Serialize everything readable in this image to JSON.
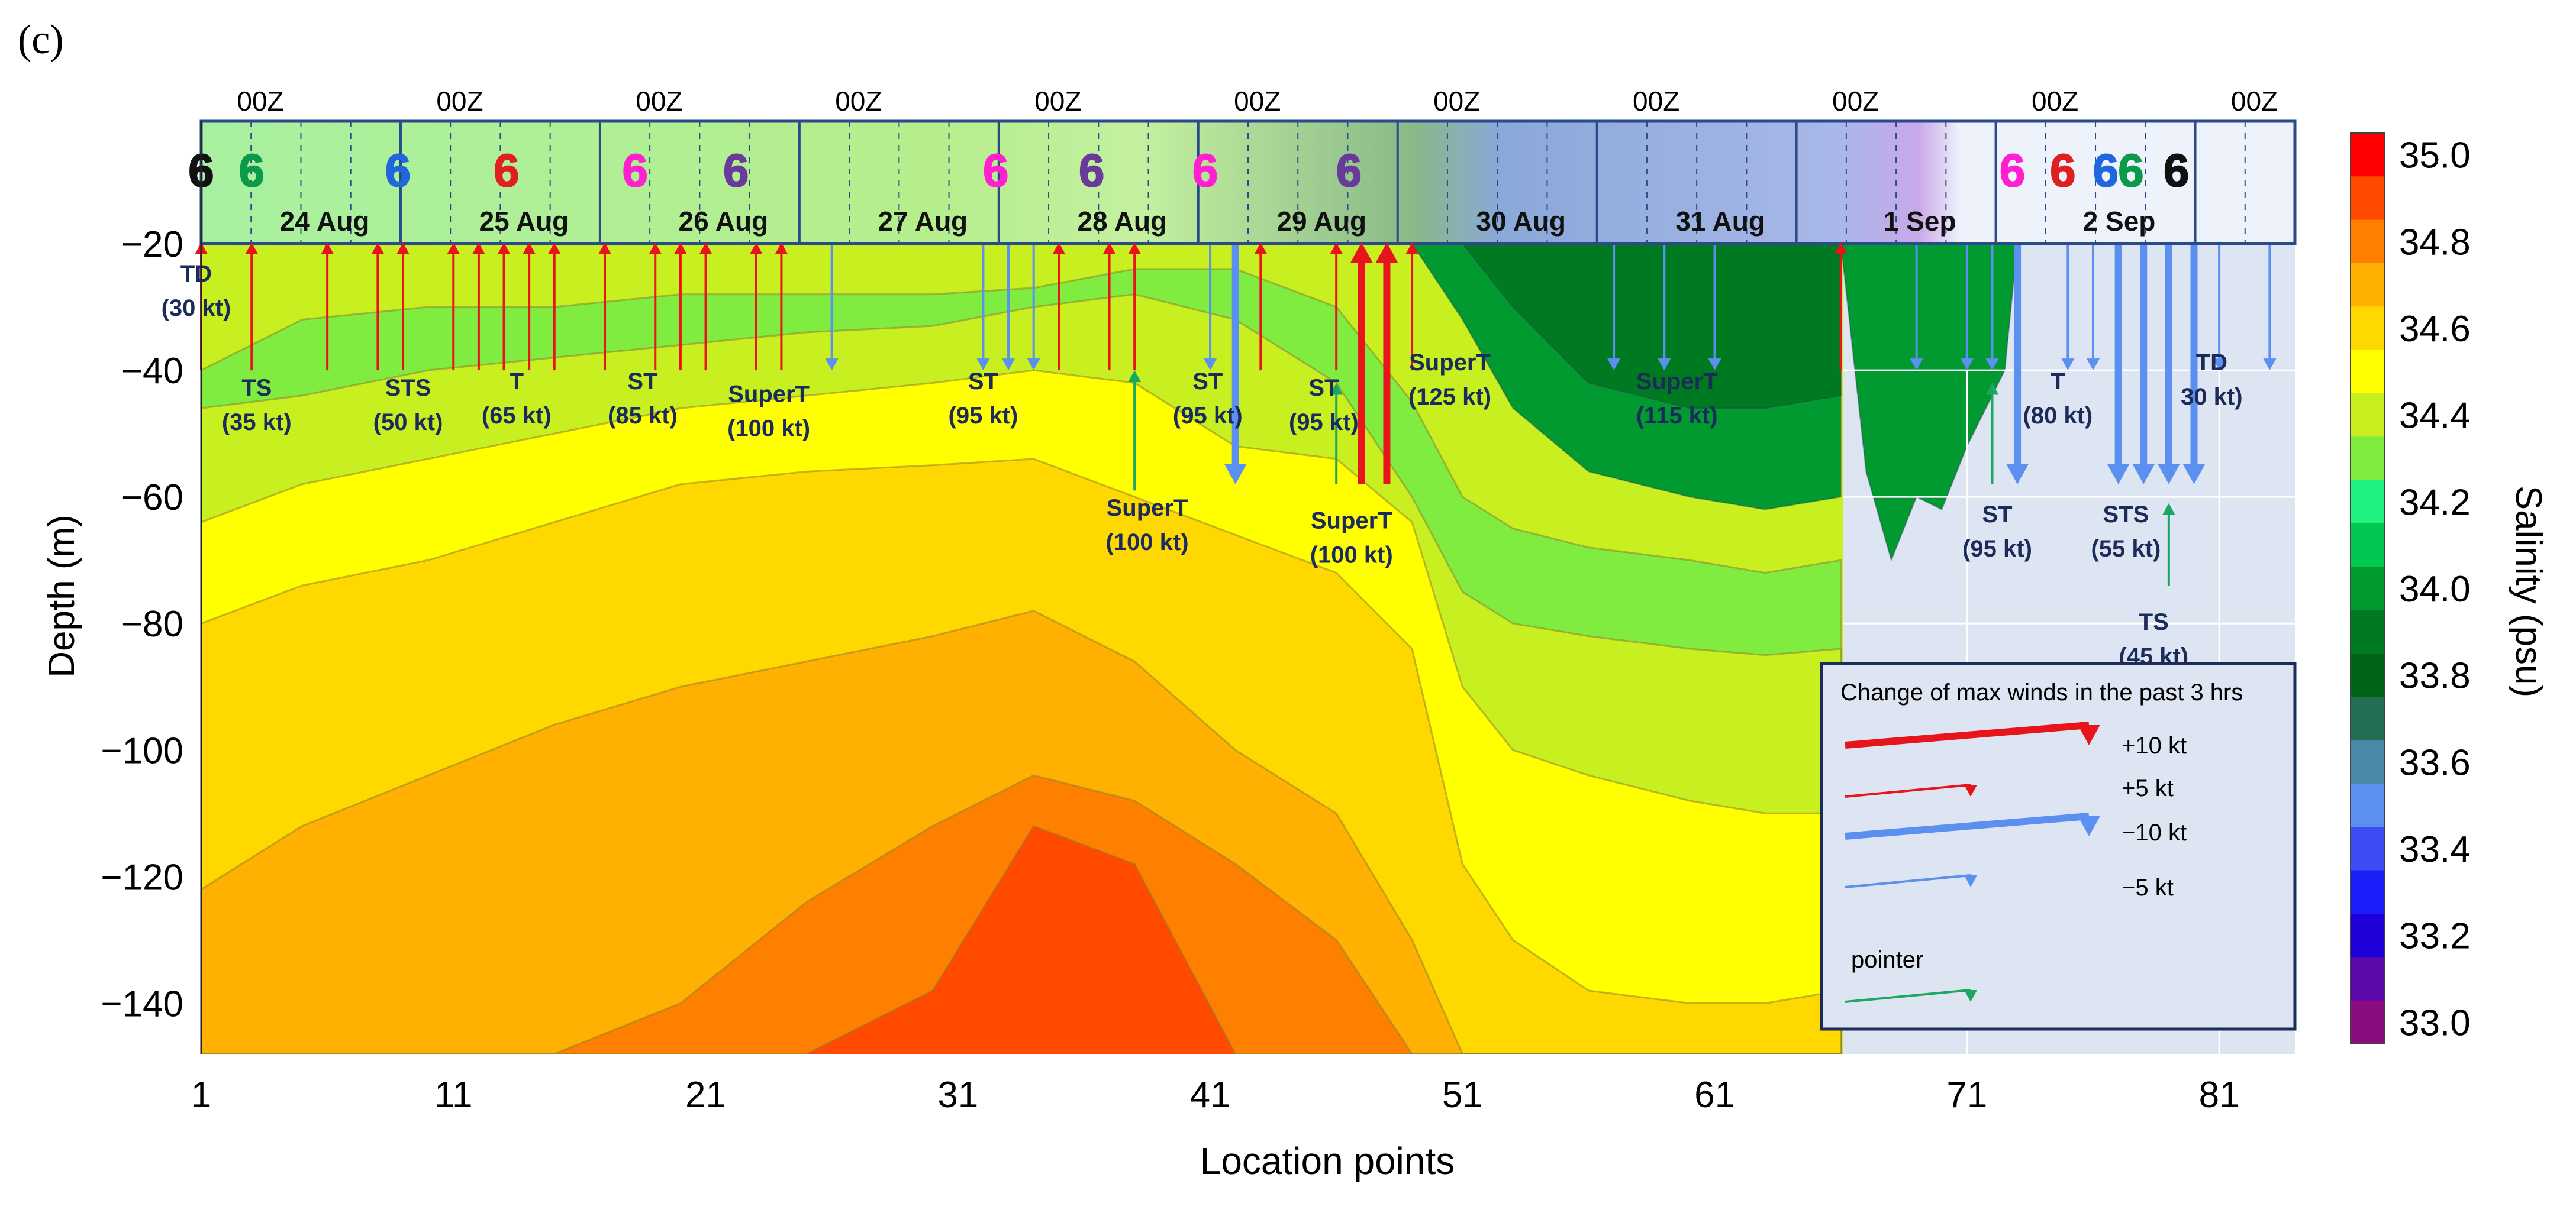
{
  "chart_data": {
    "type": "heatmap",
    "panel_label": "(c)",
    "xlabel": "Location points",
    "ylabel": "Depth (m)",
    "colorbar_label": "Salinity (psu)",
    "xlim": [
      1,
      84
    ],
    "ylim": [
      -148,
      0
    ],
    "x_ticks": [
      1,
      11,
      21,
      31,
      41,
      51,
      61,
      71,
      81
    ],
    "y_ticks": [
      -20,
      -40,
      -60,
      -80,
      -100,
      -120,
      -140
    ],
    "colorbar": {
      "range": [
        32.95,
        35.05
      ],
      "tick_labels": [
        "35.0",
        "34.8",
        "34.6",
        "34.4",
        "34.2",
        "34.0",
        "33.8",
        "33.6",
        "33.4",
        "33.2",
        "33.0"
      ],
      "tick_values": [
        35.0,
        34.8,
        34.6,
        34.4,
        34.2,
        34.0,
        33.8,
        33.6,
        33.4,
        33.2,
        33.0
      ],
      "levels": [
        {
          "min": 34.95,
          "color": "#ff0000"
        },
        {
          "min": 34.85,
          "color": "#ff4a00"
        },
        {
          "min": 34.75,
          "color": "#ff8000"
        },
        {
          "min": 34.65,
          "color": "#ffb000"
        },
        {
          "min": 34.55,
          "color": "#ffd800"
        },
        {
          "min": 34.45,
          "color": "#ffff00"
        },
        {
          "min": 34.35,
          "color": "#c8f020"
        },
        {
          "min": 34.25,
          "color": "#80ec40"
        },
        {
          "min": 34.15,
          "color": "#20f080"
        },
        {
          "min": 34.05,
          "color": "#00c850"
        },
        {
          "min": 33.95,
          "color": "#009a30"
        },
        {
          "min": 33.85,
          "color": "#007a20"
        },
        {
          "min": 33.75,
          "color": "#006418"
        },
        {
          "min": 33.65,
          "color": "#226e52"
        },
        {
          "min": 33.55,
          "color": "#4a8aa8"
        },
        {
          "min": 33.45,
          "color": "#5b8ff0"
        },
        {
          "min": 33.35,
          "color": "#3e4cf6"
        },
        {
          "min": 33.25,
          "color": "#1a1ef8"
        },
        {
          "min": 33.15,
          "color": "#1e00d8"
        },
        {
          "min": 33.05,
          "color": "#5a0aa8"
        },
        {
          "min": 32.95,
          "color": "#8a0a80"
        }
      ]
    },
    "salinity_surfaces": {
      "x": [
        1,
        5,
        10,
        15,
        20,
        25,
        30,
        34,
        38,
        42,
        46,
        49,
        51,
        53,
        56,
        60,
        63,
        66
      ],
      "note": "depth (m) at which each salinity level is crossed along the track",
      "isolines": [
        {
          "level": 34.3,
          "depth": [
            -40,
            -32,
            -30,
            -30,
            -28,
            -28,
            -28,
            -27,
            -24,
            -24,
            -30,
            -45,
            -60,
            -65,
            -68,
            -70,
            -72,
            -70
          ]
        },
        {
          "level": 34.4,
          "depth": [
            -46,
            -44,
            -40,
            -38,
            -36,
            -34,
            -33,
            -30,
            -28,
            -32,
            -42,
            -60,
            -75,
            -80,
            -82,
            -84,
            -85,
            -84
          ]
        },
        {
          "level": 34.5,
          "depth": [
            -64,
            -58,
            -54,
            -50,
            -46,
            -44,
            -42,
            -40,
            -42,
            -52,
            -54,
            -64,
            -90,
            -100,
            -104,
            -108,
            -110,
            -110
          ]
        },
        {
          "level": 34.6,
          "depth": [
            -80,
            -74,
            -70,
            -64,
            -58,
            -56,
            -55,
            -54,
            -60,
            -66,
            -72,
            -84,
            -118,
            -130,
            -138,
            -140,
            -140,
            -138
          ]
        },
        {
          "level": 34.7,
          "depth": [
            -122,
            -112,
            -104,
            -96,
            -90,
            -86,
            -82,
            -78,
            -86,
            -100,
            -110,
            -130,
            -148,
            -148,
            -148,
            -148,
            -148,
            -148
          ]
        },
        {
          "level": 34.8,
          "depth": [
            -148,
            -148,
            -148,
            -148,
            -140,
            -124,
            -112,
            -104,
            -108,
            -118,
            -130,
            -148,
            -148,
            -148,
            -148,
            -148,
            -148,
            -148
          ]
        },
        {
          "level": 34.9,
          "depth": [
            -148,
            -148,
            -148,
            -148,
            -148,
            -148,
            -138,
            -112,
            -118,
            -148,
            -148,
            -148,
            -148,
            -148,
            -148,
            -148,
            -148,
            -148
          ]
        }
      ]
    },
    "series": [
      {
        "name": "Change of max winds +10 kt",
        "values": [
          47,
          48
        ]
      },
      {
        "name": "Change of max winds +5 kt",
        "values": [
          1,
          3,
          6,
          8,
          9,
          11,
          12,
          13,
          14,
          15,
          17,
          19,
          20,
          21,
          23,
          24,
          35,
          37,
          38,
          43,
          46,
          47,
          49,
          66
        ]
      },
      {
        "name": "Change of max winds −10 kt",
        "values": [
          42,
          73,
          77,
          78,
          79,
          80
        ]
      },
      {
        "name": "Change of max winds −5 kt",
        "values": [
          26,
          32,
          33,
          34,
          41,
          57,
          59,
          61,
          69,
          71,
          72,
          75,
          76,
          81,
          83
        ]
      }
    ],
    "arrows": [
      {
        "x": 1,
        "kind": "+5",
        "to": -40
      },
      {
        "x": 3,
        "kind": "+5",
        "to": -40
      },
      {
        "x": 6,
        "kind": "+5",
        "to": -40
      },
      {
        "x": 8,
        "kind": "+5",
        "to": -40
      },
      {
        "x": 9,
        "kind": "+5",
        "to": -40
      },
      {
        "x": 11,
        "kind": "+5",
        "to": -40
      },
      {
        "x": 12,
        "kind": "+5",
        "to": -40
      },
      {
        "x": 13,
        "kind": "+5",
        "to": -40
      },
      {
        "x": 14,
        "kind": "+5",
        "to": -40
      },
      {
        "x": 15,
        "kind": "+5",
        "to": -40
      },
      {
        "x": 17,
        "kind": "+5",
        "to": -40
      },
      {
        "x": 19,
        "kind": "+5",
        "to": -40
      },
      {
        "x": 20,
        "kind": "+5",
        "to": -40
      },
      {
        "x": 21,
        "kind": "+5",
        "to": -40
      },
      {
        "x": 23,
        "kind": "+5",
        "to": -40
      },
      {
        "x": 24,
        "kind": "+5",
        "to": -40
      },
      {
        "x": 26,
        "kind": "-5",
        "to": -40
      },
      {
        "x": 32,
        "kind": "-5",
        "to": -40
      },
      {
        "x": 33,
        "kind": "-5",
        "to": -40
      },
      {
        "x": 34,
        "kind": "-5",
        "to": -40
      },
      {
        "x": 35,
        "kind": "+5",
        "to": -40
      },
      {
        "x": 37,
        "kind": "+5",
        "to": -40
      },
      {
        "x": 38,
        "kind": "+5",
        "to": -40
      },
      {
        "x": 38,
        "kind": "pointer",
        "from": -59,
        "to": -40
      },
      {
        "x": 41,
        "kind": "-5",
        "to": -40
      },
      {
        "x": 42,
        "kind": "-10",
        "to": -58
      },
      {
        "x": 43,
        "kind": "+5",
        "to": -40
      },
      {
        "x": 46,
        "kind": "+5",
        "to": -40
      },
      {
        "x": 46,
        "kind": "pointer",
        "from": -58,
        "to": -42
      },
      {
        "x": 47,
        "kind": "+5",
        "to": -40
      },
      {
        "x": 47,
        "kind": "+10",
        "to": -58
      },
      {
        "x": 48,
        "kind": "+10",
        "to": -58
      },
      {
        "x": 49,
        "kind": "+5",
        "to": -40
      },
      {
        "x": 57,
        "kind": "-5",
        "to": -40
      },
      {
        "x": 59,
        "kind": "-5",
        "to": -40
      },
      {
        "x": 61,
        "kind": "-5",
        "to": -40
      },
      {
        "x": 66,
        "kind": "+5",
        "to": -40
      },
      {
        "x": 69,
        "kind": "-5",
        "to": -40
      },
      {
        "x": 71,
        "kind": "-5",
        "to": -40
      },
      {
        "x": 72,
        "kind": "-5",
        "to": -40
      },
      {
        "x": 72,
        "kind": "pointer",
        "from": -58,
        "to": -42
      },
      {
        "x": 73,
        "kind": "-10",
        "to": -58
      },
      {
        "x": 75,
        "kind": "-5",
        "to": -40
      },
      {
        "x": 76,
        "kind": "-5",
        "to": -40
      },
      {
        "x": 77,
        "kind": "-10",
        "to": -58
      },
      {
        "x": 78,
        "kind": "-10",
        "to": -58
      },
      {
        "x": 79,
        "kind": "-10",
        "to": -58
      },
      {
        "x": 79,
        "kind": "pointer",
        "from": -74,
        "to": -61
      },
      {
        "x": 80,
        "kind": "-10",
        "to": -58
      },
      {
        "x": 81,
        "kind": "-5",
        "to": -40
      },
      {
        "x": 83,
        "kind": "-5",
        "to": -40
      }
    ],
    "annotations": [
      {
        "text": "TD",
        "text2": "(30 kt)",
        "x": 0.8,
        "y": -26
      },
      {
        "text": "TS",
        "text2": "(35 kt)",
        "x": 3.2,
        "y": -44
      },
      {
        "text": "STS",
        "text2": "(50 kt)",
        "x": 9.2,
        "y": -44
      },
      {
        "text": "T",
        "text2": "(65 kt)",
        "x": 13.5,
        "y": -43
      },
      {
        "text": "ST",
        "text2": "(85 kt)",
        "x": 18.5,
        "y": -43
      },
      {
        "text": "SuperT",
        "text2": "(100 kt)",
        "x": 23.5,
        "y": -45
      },
      {
        "text": "ST",
        "text2": "(95 kt)",
        "x": 32,
        "y": -43
      },
      {
        "text": "SuperT",
        "text2": "(100 kt)",
        "x": 38.5,
        "y": -63
      },
      {
        "text": "ST",
        "text2": "(95 kt)",
        "x": 40.9,
        "y": -43
      },
      {
        "text": "ST",
        "text2": "(95 kt)",
        "x": 45.5,
        "y": -44
      },
      {
        "text": "SuperT",
        "text2": "(100 kt)",
        "x": 46.6,
        "y": -65
      },
      {
        "text": "SuperT",
        "text2": "(125 kt)",
        "x": 50.5,
        "y": -40
      },
      {
        "text": "SuperT",
        "text2": "(115 kt)",
        "x": 59.5,
        "y": -43
      },
      {
        "text": "ST",
        "text2": "(95 kt)",
        "x": 72.2,
        "y": -64
      },
      {
        "text": "T",
        "text2": "(80 kt)",
        "x": 74.6,
        "y": -43
      },
      {
        "text": "STS",
        "text2": "(55 kt)",
        "x": 77.3,
        "y": -64
      },
      {
        "text": "TS",
        "text2": "(45 kt)",
        "x": 78.4,
        "y": -81
      },
      {
        "text": "TD",
        "text2": "30 kt)",
        "x": 80.7,
        "y": -40
      }
    ],
    "days": [
      {
        "label": "24 Aug",
        "x_start": 1,
        "x_end": 18
      },
      {
        "label": "25 Aug",
        "x_start": 18,
        "x_end": 39
      },
      {
        "label": "26 Aug",
        "x_start": 39,
        "x_end": 60
      },
      {
        "label": "27 Aug",
        "x_start": 60,
        "x_end": 81
      },
      {
        "label": "28 Aug",
        "x_start": 81,
        "x_end": 102
      },
      {
        "label": "29 Aug",
        "x_start": 102,
        "x_end": 123
      },
      {
        "label": "30 Aug",
        "x_start": 123,
        "x_end": 144
      },
      {
        "label": "31 Aug",
        "x_start": 144,
        "x_end": 165
      },
      {
        "label": "1 Sep",
        "x_start": 165,
        "x_end": 186
      },
      {
        "label": "2 Sep",
        "x_start": 186,
        "x_end": 210
      }
    ],
    "hour_label": "00Z",
    "storm_symbols": [
      {
        "glyph": "6",
        "color": "#111111",
        "x": 1.0
      },
      {
        "glyph": "6",
        "color": "#0a9a4a",
        "x": 3.0
      },
      {
        "glyph": "6",
        "color": "#2266dd",
        "x": 8.8
      },
      {
        "glyph": "6",
        "color": "#e02020",
        "x": 13.1
      },
      {
        "glyph": "6",
        "color": "#ff20d0",
        "x": 18.2
      },
      {
        "glyph": "6",
        "color": "#6a3a9a",
        "x": 22.2
      },
      {
        "glyph": "6",
        "color": "#ff20d0",
        "x": 32.5
      },
      {
        "glyph": "6",
        "color": "#6a3a9a",
        "x": 36.3
      },
      {
        "glyph": "6",
        "color": "#ff20d0",
        "x": 40.8
      },
      {
        "glyph": "6",
        "color": "#6a3a9a",
        "x": 46.5
      },
      {
        "glyph": "6",
        "color": "#ff20d0",
        "x": 72.8
      },
      {
        "glyph": "6",
        "color": "#e02020",
        "x": 74.8
      },
      {
        "glyph": "6",
        "color": "#2266dd",
        "x": 76.5
      },
      {
        "glyph": "6",
        "color": "#0a9a4a",
        "x": 77.5
      },
      {
        "glyph": "6",
        "color": "#111111",
        "x": 79.3
      }
    ],
    "legend": {
      "position": "bottom-right",
      "title": "Change of max winds in the past 3 hrs",
      "items": [
        {
          "label": "+10 kt",
          "kind": "+10"
        },
        {
          "label": "+5 kt",
          "kind": "+5"
        },
        {
          "label": "−10 kt",
          "kind": "-10"
        },
        {
          "label": "−5 kt",
          "kind": "-5"
        },
        {
          "label": "pointer",
          "kind": "pointer"
        }
      ]
    },
    "colors": {
      "plus": "#e8141c",
      "minus": "#5b8ff0",
      "pointer": "#1aa860",
      "annotation_text": "#1c2c5a",
      "track_border": "#2a4a8a",
      "grey_region": "#dde4f2"
    }
  }
}
